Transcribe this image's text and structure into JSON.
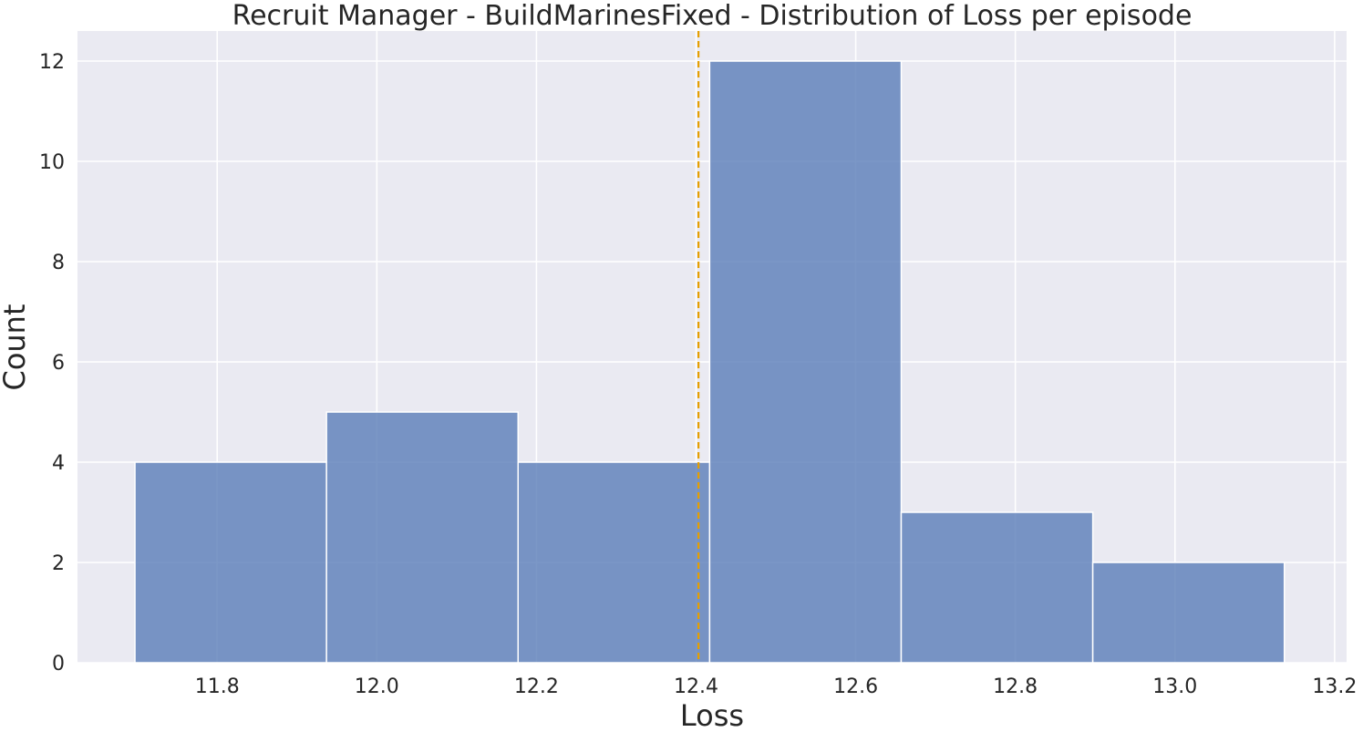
{
  "chart_data": {
    "type": "bar",
    "title": "Recruit Manager - BuildMarinesFixed - Distribution of Loss per episode",
    "xlabel": "Loss",
    "ylabel": "Count",
    "xlim": [
      11.625,
      13.215
    ],
    "ylim": [
      0,
      12.6
    ],
    "x_ticks": [
      11.8,
      12.0,
      12.2,
      12.4,
      12.6,
      12.8,
      13.0,
      13.2
    ],
    "x_tick_labels": [
      "11.8",
      "12.0",
      "12.2",
      "12.4",
      "12.6",
      "12.8",
      "13.0",
      "13.2"
    ],
    "y_ticks": [
      0,
      2,
      4,
      6,
      8,
      10,
      12
    ],
    "y_tick_labels": [
      "0",
      "2",
      "4",
      "6",
      "8",
      "10",
      "12"
    ],
    "bins": [
      {
        "x0": 11.697,
        "x1": 11.937,
        "count": 4
      },
      {
        "x0": 11.937,
        "x1": 12.177,
        "count": 5
      },
      {
        "x0": 12.177,
        "x1": 12.417,
        "count": 4
      },
      {
        "x0": 12.417,
        "x1": 12.657,
        "count": 12
      },
      {
        "x0": 12.657,
        "x1": 12.897,
        "count": 3
      },
      {
        "x0": 12.897,
        "x1": 13.137,
        "count": 2
      }
    ],
    "reference_line": {
      "x": 12.403,
      "style": "dashed",
      "color": "#E69F00"
    },
    "bar_color": "#5A7DB8",
    "grid": true,
    "legend": "none"
  }
}
